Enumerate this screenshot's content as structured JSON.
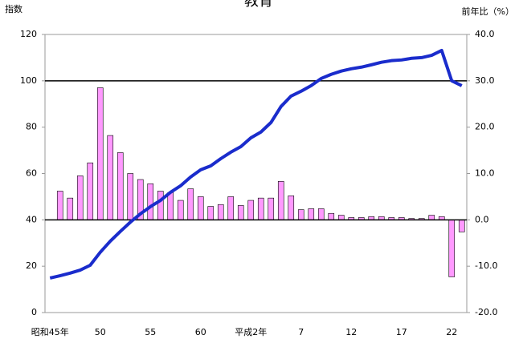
{
  "chart_data": {
    "type": "bar-line",
    "title": "教育",
    "y_label": "指数",
    "y2_label": "前年比（%）",
    "categories": [
      "昭和45年",
      null,
      null,
      null,
      null,
      "50",
      null,
      null,
      null,
      null,
      "55",
      null,
      null,
      null,
      null,
      "60",
      null,
      null,
      null,
      null,
      "平成2年",
      null,
      null,
      null,
      null,
      "7",
      null,
      null,
      null,
      null,
      "12",
      null,
      null,
      null,
      null,
      "17",
      null,
      null,
      null,
      null,
      "22",
      null
    ],
    "series": [
      {
        "name": "前年比",
        "type": "bar",
        "axis": "y2",
        "color": "#ff99ff",
        "values": [
          null,
          6.2,
          4.7,
          9.5,
          12.3,
          28.5,
          18.2,
          14.5,
          10.0,
          8.7,
          7.8,
          6.2,
          5.9,
          4.2,
          6.7,
          5.0,
          2.9,
          3.3,
          5.0,
          3.1,
          4.2,
          4.7,
          4.7,
          8.3,
          5.2,
          2.2,
          2.4,
          2.4,
          1.4,
          1.0,
          0.5,
          0.5,
          0.7,
          0.7,
          0.5,
          0.5,
          0.3,
          0.3,
          1.0,
          0.7,
          -12.3,
          -2.6
        ]
      },
      {
        "name": "指数",
        "type": "line",
        "axis": "y",
        "color": "#1a2ccc",
        "values": [
          14.9,
          15.9,
          17.0,
          18.3,
          20.4,
          26.0,
          30.8,
          35.0,
          39.0,
          42.6,
          45.7,
          48.4,
          51.9,
          54.7,
          58.5,
          61.6,
          63.3,
          66.4,
          69.2,
          71.6,
          75.4,
          77.9,
          82.0,
          88.9,
          93.4,
          95.5,
          97.9,
          101.0,
          102.8,
          104.2,
          105.2,
          105.9,
          106.9,
          108.0,
          108.7,
          109.0,
          109.7,
          110.0,
          111.0,
          113.1,
          100.0,
          97.9
        ]
      }
    ],
    "ylim": [
      0,
      120
    ],
    "yticks": [
      0,
      20,
      40,
      60,
      80,
      100,
      120
    ],
    "y2lim": [
      -20,
      40
    ],
    "y2ticks": [
      {
        "value": -20,
        "label": "-20.0"
      },
      {
        "value": -10,
        "label": "-10.0"
      },
      {
        "value": 0,
        "label": "0.0"
      },
      {
        "value": 10,
        "label": "10.0"
      },
      {
        "value": 20,
        "label": "20.0"
      },
      {
        "value": 30,
        "label": "30.0"
      },
      {
        "value": 40,
        "label": "40.0"
      }
    ],
    "ref_lines": {
      "y": 100,
      "y2": 0
    }
  }
}
